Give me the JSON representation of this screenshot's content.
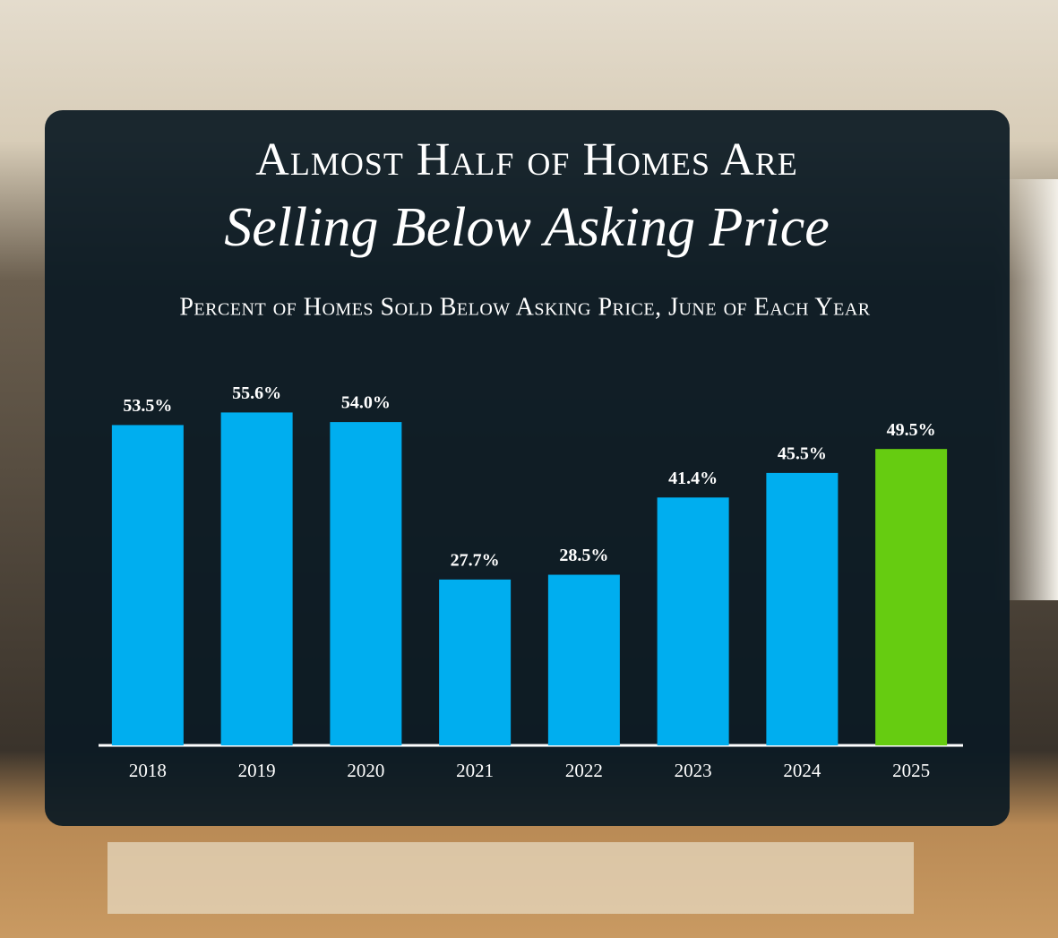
{
  "chart_data": {
    "type": "bar",
    "title": "Almost Half of Homes Are",
    "title_emphasis": "Selling Below Asking Price",
    "subtitle": "Percent of Homes Sold Below Asking Price, June of Each Year",
    "categories": [
      "2018",
      "2019",
      "2020",
      "2021",
      "2022",
      "2023",
      "2024",
      "2025"
    ],
    "values": [
      53.5,
      55.6,
      54.0,
      27.7,
      28.5,
      41.4,
      45.5,
      49.5
    ],
    "value_labels": [
      "53.5%",
      "55.6%",
      "54.0%",
      "27.7%",
      "28.5%",
      "41.4%",
      "45.5%",
      "49.5%"
    ],
    "colors": [
      "#00aeef",
      "#00aeef",
      "#00aeef",
      "#00aeef",
      "#00aeef",
      "#00aeef",
      "#00aeef",
      "#66cc11"
    ],
    "ylim": [
      0,
      60
    ],
    "grid": false
  }
}
